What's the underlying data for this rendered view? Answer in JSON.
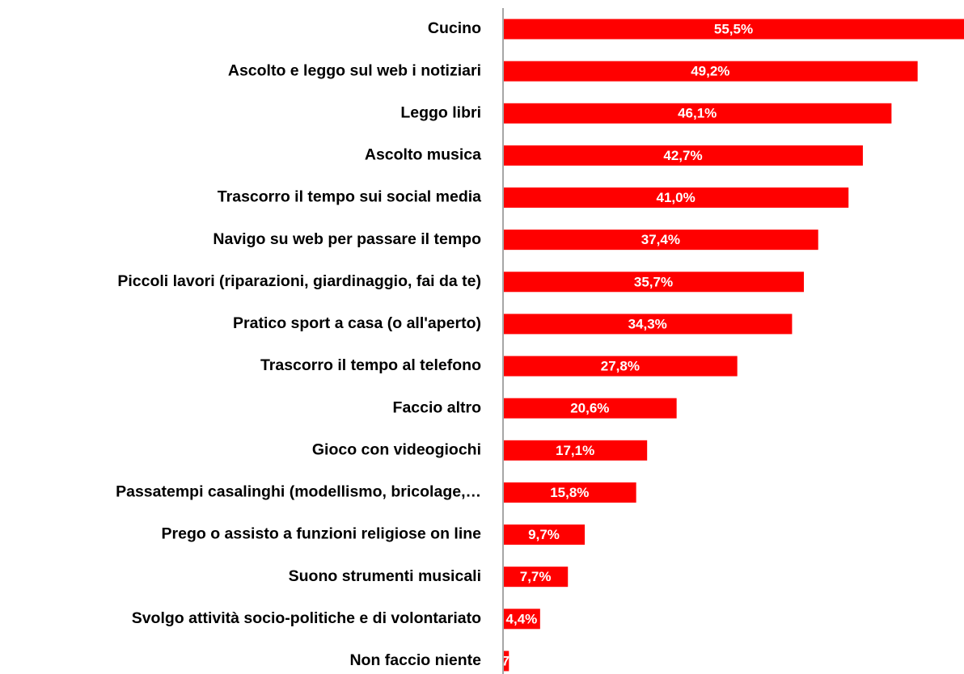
{
  "chart_data": {
    "type": "hbar",
    "categories": [
      "Cucino",
      "Ascolto e leggo sul web i notiziari",
      "Leggo libri",
      "Ascolto musica",
      "Trascorro il tempo sui social media",
      "Navigo su web per passare il tempo",
      "Piccoli lavori (riparazioni, giardinaggio, fai da te)",
      "Pratico sport a casa (o all'aperto)",
      "Trascorro il tempo al telefono",
      "Faccio altro",
      "Gioco con videogiochi",
      "Passatempi casalinghi (modellismo, bricolage,…",
      "Prego o assisto a funzioni religiose on line",
      "Suono strumenti musicali",
      "Svolgo attività socio-politiche e di volontariato",
      "Non faccio niente"
    ],
    "values": [
      55.5,
      49.2,
      46.1,
      42.7,
      41.0,
      37.4,
      35.7,
      34.3,
      27.8,
      20.6,
      17.1,
      15.8,
      9.7,
      7.7,
      4.4,
      0.7
    ],
    "value_labels": [
      "55,5%",
      "49,2%",
      "46,1%",
      "42,7%",
      "41,0%",
      "37,4%",
      "35,7%",
      "34,3%",
      "27,8%",
      "20,6%",
      "17,1%",
      "15,8%",
      "9,7%",
      "7,7%",
      "4,4%",
      "0,7%"
    ],
    "color": "#ff0000"
  }
}
